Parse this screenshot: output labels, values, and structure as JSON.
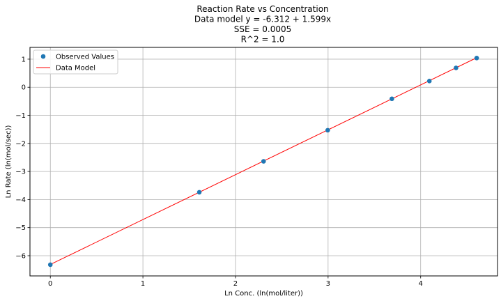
{
  "chart_data": {
    "type": "scatter",
    "title_lines": [
      "Reaction Rate vs Concentration",
      "Data model y = -6.312 + 1.599x",
      "SSE = 0.0005",
      "R^2 = 1.0"
    ],
    "xlabel": "Ln Conc. (ln(mol/liter))",
    "ylabel": "Ln Rate (ln(mol/sec))",
    "xlim": [
      -0.22,
      4.83
    ],
    "ylim": [
      -6.72,
      1.42
    ],
    "xticks": [
      0,
      1,
      2,
      3,
      4
    ],
    "yticks": [
      -6,
      -5,
      -4,
      -3,
      -2,
      -1,
      0,
      1
    ],
    "xtick_labels": [
      "0",
      "1",
      "2",
      "3",
      "4"
    ],
    "ytick_labels": [
      "−6",
      "−5",
      "−4",
      "−3",
      "−2",
      "−1",
      "0",
      "1"
    ],
    "grid": true,
    "legend_position": "top-left",
    "series": [
      {
        "name": "Observed Values",
        "kind": "points",
        "color": "#1f77b4",
        "x": [
          0.0,
          1.609,
          2.303,
          2.996,
          3.689,
          4.094,
          4.382,
          4.605
        ],
        "y": [
          -6.32,
          -3.74,
          -2.64,
          -1.53,
          -0.41,
          0.22,
          0.69,
          1.04
        ]
      },
      {
        "name": "Data Model",
        "kind": "line",
        "color": "#ff0000",
        "intercept": -6.312,
        "slope": 1.599,
        "x": [
          0.0,
          4.605
        ],
        "y": [
          -6.312,
          1.051
        ]
      }
    ]
  }
}
